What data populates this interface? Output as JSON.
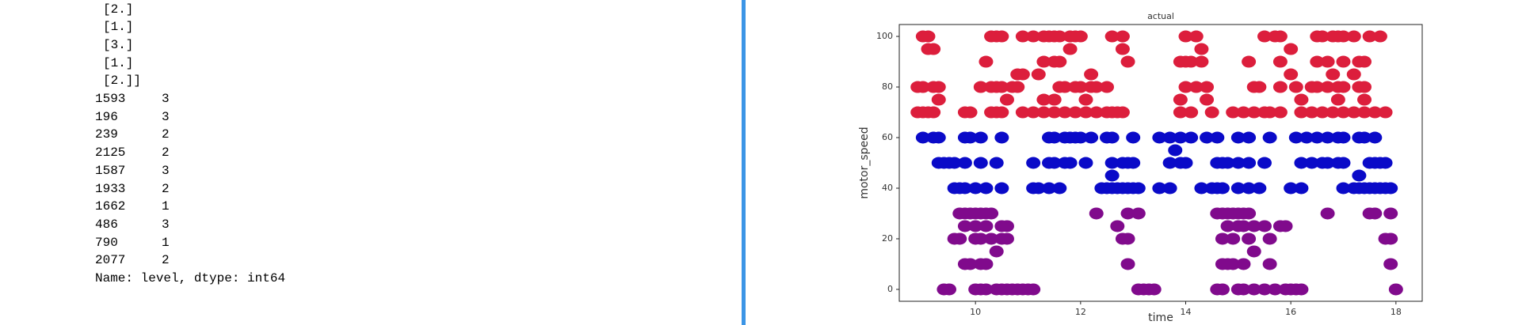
{
  "console": {
    "lines": [
      "[2.]",
      "[1.]",
      "[3.]",
      "[1.]",
      "[2.]]"
    ],
    "rows": [
      [
        "1593",
        "3"
      ],
      [
        "196",
        "3"
      ],
      [
        "239",
        "2"
      ],
      [
        "2125",
        "2"
      ],
      [
        "1587",
        "3"
      ],
      [
        "1933",
        "2"
      ],
      [
        "1662",
        "1"
      ],
      [
        "486",
        "3"
      ],
      [
        "790",
        "1"
      ],
      [
        "2077",
        "2"
      ]
    ],
    "footer": "Name: level, dtype: int64"
  },
  "chart_data": {
    "type": "scatter",
    "title": "actual",
    "x_label": "time",
    "y_label": "motor_speed",
    "xlim": [
      8.55,
      18.5
    ],
    "ylim": [
      -4.7,
      104.7
    ],
    "xticks": [
      10,
      12,
      14,
      16,
      18
    ],
    "yticks": [
      0,
      20,
      40,
      60,
      80,
      100
    ],
    "series": [
      {
        "color": "#dc1e3c",
        "x": [
          9.0,
          9.1,
          10.3,
          10.4,
          10.5,
          10.9,
          11.1,
          11.3,
          11.4,
          11.5,
          11.6,
          11.8,
          11.9,
          12.0,
          12.6,
          12.8,
          14.0,
          14.2,
          15.5,
          15.7,
          15.8,
          16.5,
          16.6,
          16.8,
          16.9,
          17.0,
          17.2,
          17.5,
          17.7,
          9.1,
          9.2,
          11.8,
          12.8,
          14.3,
          16.0,
          10.2,
          11.3,
          11.5,
          11.6,
          12.9,
          13.9,
          14.0,
          14.1,
          14.3,
          15.2,
          15.8,
          16.5,
          16.7,
          17.0,
          17.3,
          17.4,
          10.8,
          10.9,
          11.2,
          12.2,
          16.0,
          16.8,
          17.2,
          8.9,
          9.0,
          9.2,
          9.3,
          10.1,
          10.3,
          10.4,
          10.5,
          10.7,
          10.8,
          11.6,
          11.7,
          11.9,
          12.0,
          12.2,
          12.3,
          12.5,
          14.0,
          14.2,
          14.4,
          15.3,
          15.4,
          15.8,
          16.1,
          16.4,
          16.5,
          16.7,
          16.9,
          17.0,
          17.3,
          17.4,
          9.3,
          10.6,
          11.3,
          11.5,
          12.1,
          13.9,
          14.4,
          16.2,
          16.9,
          17.4,
          8.9,
          9.0,
          9.1,
          9.2,
          9.8,
          9.9,
          10.3,
          10.4,
          10.5,
          10.9,
          11.1,
          11.3,
          11.5,
          11.7,
          11.9,
          12.1,
          12.3,
          12.5,
          12.6,
          12.7,
          12.8,
          13.9,
          14.1,
          14.5,
          14.9,
          15.1,
          15.3,
          15.5,
          15.6,
          15.8,
          16.2,
          16.4,
          16.6,
          16.8,
          17.0,
          17.2,
          17.4,
          17.6,
          17.8
        ],
        "values": [
          100,
          100,
          100,
          100,
          100,
          100,
          100,
          100,
          100,
          100,
          100,
          100,
          100,
          100,
          100,
          100,
          100,
          100,
          100,
          100,
          100,
          100,
          100,
          100,
          100,
          100,
          100,
          100,
          100,
          95,
          95,
          95,
          95,
          95,
          95,
          90,
          90,
          90,
          90,
          90,
          90,
          90,
          90,
          90,
          90,
          90,
          90,
          90,
          90,
          90,
          90,
          85,
          85,
          85,
          85,
          85,
          85,
          85,
          80,
          80,
          80,
          80,
          80,
          80,
          80,
          80,
          80,
          80,
          80,
          80,
          80,
          80,
          80,
          80,
          80,
          80,
          80,
          80,
          80,
          80,
          80,
          80,
          80,
          80,
          80,
          80,
          80,
          80,
          80,
          75,
          75,
          75,
          75,
          75,
          75,
          75,
          75,
          75,
          75,
          70,
          70,
          70,
          70,
          70,
          70,
          70,
          70,
          70,
          70,
          70,
          70,
          70,
          70,
          70,
          70,
          70,
          70,
          70,
          70,
          70,
          70,
          70,
          70,
          70,
          70,
          70,
          70,
          70,
          70,
          70,
          70,
          70,
          70,
          70,
          70,
          70,
          70,
          70
        ]
      },
      {
        "color": "#0a0ac8",
        "x": [
          9.0,
          9.2,
          9.3,
          9.8,
          9.9,
          10.1,
          10.5,
          11.4,
          11.5,
          11.7,
          11.8,
          11.9,
          12.0,
          12.2,
          12.5,
          12.6,
          13.0,
          13.5,
          13.7,
          13.9,
          14.1,
          14.4,
          14.6,
          15.0,
          15.2,
          15.6,
          16.1,
          16.3,
          16.5,
          16.7,
          16.9,
          17.0,
          17.3,
          17.4,
          17.6,
          13.8,
          9.3,
          9.4,
          9.5,
          9.6,
          9.8,
          10.1,
          10.4,
          11.1,
          11.4,
          11.5,
          11.7,
          11.8,
          12.1,
          12.6,
          12.8,
          12.9,
          13.0,
          13.7,
          13.9,
          14.0,
          14.6,
          14.7,
          14.8,
          15.0,
          15.2,
          15.5,
          16.2,
          16.4,
          16.6,
          16.7,
          16.9,
          17.0,
          17.5,
          17.6,
          17.7,
          17.8,
          12.6,
          17.3,
          9.6,
          9.7,
          9.8,
          10.0,
          10.2,
          10.5,
          11.1,
          11.2,
          11.4,
          11.6,
          12.4,
          12.5,
          12.6,
          12.7,
          12.8,
          12.9,
          13.0,
          13.1,
          13.5,
          13.7,
          14.3,
          14.5,
          14.6,
          14.7,
          15.0,
          15.2,
          15.4,
          16.0,
          16.2,
          17.0,
          17.2,
          17.3,
          17.4,
          17.5,
          17.6,
          17.7,
          17.8,
          17.9
        ],
        "values": [
          60,
          60,
          60,
          60,
          60,
          60,
          60,
          60,
          60,
          60,
          60,
          60,
          60,
          60,
          60,
          60,
          60,
          60,
          60,
          60,
          60,
          60,
          60,
          60,
          60,
          60,
          60,
          60,
          60,
          60,
          60,
          60,
          60,
          60,
          60,
          55,
          50,
          50,
          50,
          50,
          50,
          50,
          50,
          50,
          50,
          50,
          50,
          50,
          50,
          50,
          50,
          50,
          50,
          50,
          50,
          50,
          50,
          50,
          50,
          50,
          50,
          50,
          50,
          50,
          50,
          50,
          50,
          50,
          50,
          50,
          50,
          50,
          45,
          45,
          40,
          40,
          40,
          40,
          40,
          40,
          40,
          40,
          40,
          40,
          40,
          40,
          40,
          40,
          40,
          40,
          40,
          40,
          40,
          40,
          40,
          40,
          40,
          40,
          40,
          40,
          40,
          40,
          40,
          40,
          40,
          40,
          40,
          40,
          40,
          40,
          40,
          40
        ]
      },
      {
        "color": "#800a8c",
        "x": [
          9.7,
          9.8,
          9.9,
          10.0,
          10.1,
          10.2,
          10.3,
          12.3,
          12.9,
          13.1,
          14.6,
          14.7,
          14.8,
          14.9,
          15.0,
          15.1,
          15.2,
          16.7,
          17.5,
          17.6,
          17.9,
          9.8,
          10.0,
          10.2,
          10.5,
          10.6,
          12.7,
          14.8,
          15.0,
          15.1,
          15.3,
          15.5,
          15.8,
          15.9,
          9.6,
          9.7,
          10.0,
          10.1,
          10.3,
          10.5,
          10.6,
          12.8,
          12.9,
          14.7,
          14.9,
          15.2,
          15.6,
          17.8,
          17.9,
          10.4,
          15.3,
          9.8,
          9.9,
          10.1,
          10.2,
          12.9,
          14.7,
          14.8,
          14.9,
          15.1,
          15.6,
          17.9,
          9.4,
          9.5,
          10.0,
          10.1,
          10.2,
          10.4,
          10.5,
          10.6,
          10.7,
          10.8,
          10.9,
          11.0,
          11.1,
          13.1,
          13.2,
          13.3,
          13.4,
          14.6,
          14.7,
          15.0,
          15.1,
          15.3,
          15.5,
          15.7,
          15.9,
          16.0,
          16.1,
          16.2,
          18.0
        ],
        "values": [
          30,
          30,
          30,
          30,
          30,
          30,
          30,
          30,
          30,
          30,
          30,
          30,
          30,
          30,
          30,
          30,
          30,
          30,
          30,
          30,
          30,
          25,
          25,
          25,
          25,
          25,
          25,
          25,
          25,
          25,
          25,
          25,
          25,
          25,
          20,
          20,
          20,
          20,
          20,
          20,
          20,
          20,
          20,
          20,
          20,
          20,
          20,
          20,
          20,
          15,
          15,
          10,
          10,
          10,
          10,
          10,
          10,
          10,
          10,
          10,
          10,
          10,
          0,
          0,
          0,
          0,
          0,
          0,
          0,
          0,
          0,
          0,
          0,
          0,
          0,
          0,
          0,
          0,
          0,
          0,
          0,
          0,
          0,
          0,
          0,
          0,
          0,
          0,
          0,
          0,
          0
        ]
      }
    ]
  }
}
